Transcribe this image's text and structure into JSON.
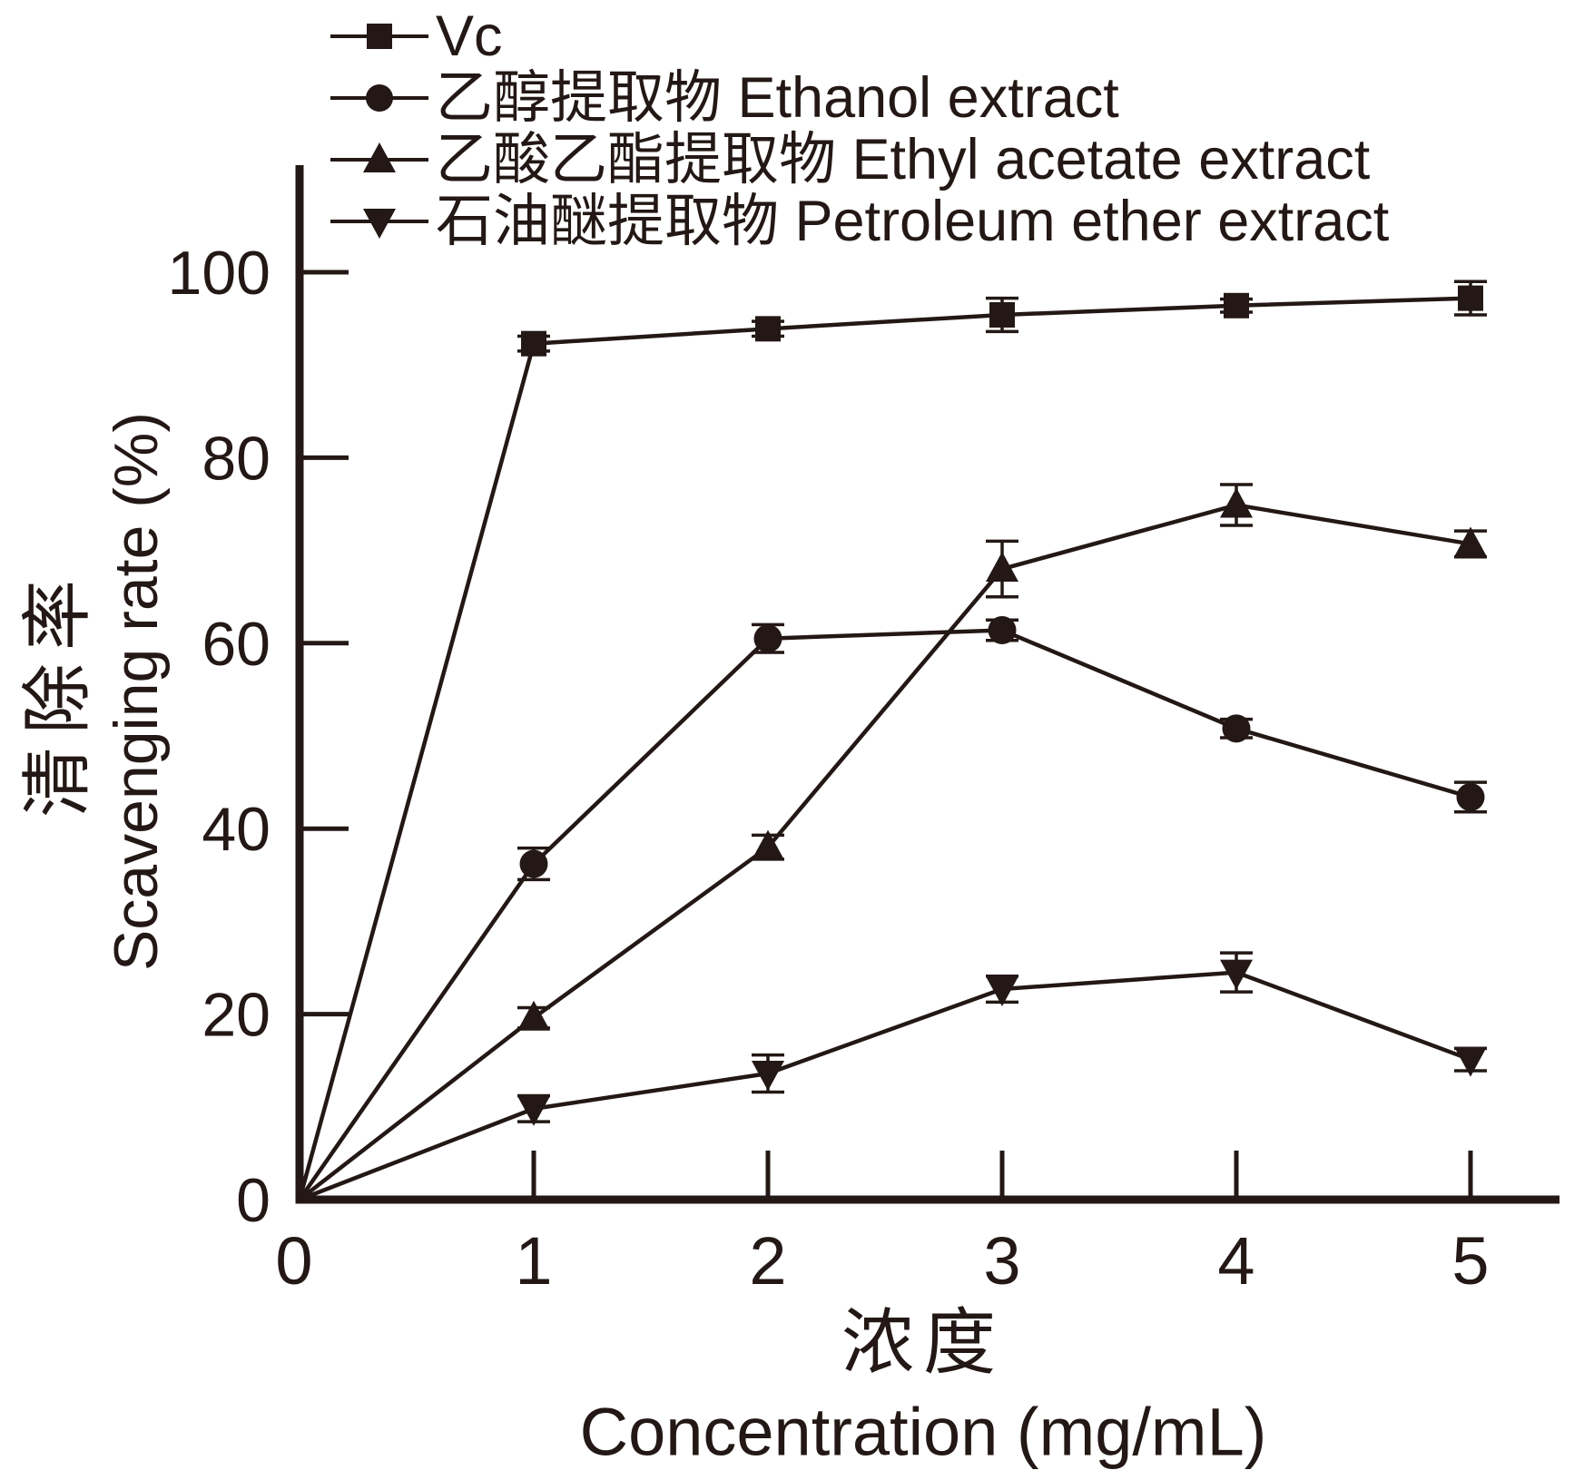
{
  "figure": {
    "background": "#ffffff",
    "ink_color": "#231815"
  },
  "chart_data": {
    "type": "line",
    "x": [
      0,
      1,
      2,
      3,
      4,
      5
    ],
    "series": [
      {
        "name": "Vc",
        "label": "Vc",
        "marker": "square",
        "values": [
          0,
          92.3,
          93.9,
          95.4,
          96.4,
          97.2
        ],
        "errors": [
          0,
          0.8,
          0.8,
          1.8,
          0.7,
          1.8
        ]
      },
      {
        "name": "Ethanol extract",
        "label": "乙醇提取物 Ethanol extract",
        "marker": "circle",
        "values": [
          0,
          36.2,
          60.5,
          61.4,
          50.8,
          43.4
        ],
        "errors": [
          0,
          1.7,
          1.5,
          1.1,
          1.0,
          1.6
        ]
      },
      {
        "name": "Ethyl acetate extract",
        "label": "乙酸乙酯提取物 Ethyl acetate extract",
        "marker": "triangle-up",
        "values": [
          0,
          19.6,
          38.0,
          68.0,
          74.9,
          70.7
        ],
        "errors": [
          0,
          1.1,
          1.3,
          3.0,
          2.2,
          1.4
        ]
      },
      {
        "name": "Petroleum ether extract",
        "label": "石油醚提取物 Petroleum ether extract",
        "marker": "triangle-down",
        "values": [
          0,
          9.8,
          13.6,
          22.7,
          24.5,
          15.1
        ],
        "errors": [
          0,
          1.4,
          2.0,
          1.4,
          2.1,
          1.2
        ]
      }
    ],
    "xlabel_cn": "浓度",
    "xlabel_en": "Concentration (mg/mL)",
    "ylabel_cn": "清除率",
    "ylabel_en": "Scavenging rate (%)",
    "x_ticks": [
      0,
      1,
      2,
      3,
      4,
      5
    ],
    "y_ticks": [
      0,
      20,
      40,
      60,
      80,
      100
    ],
    "xlim": [
      0,
      5.35
    ],
    "ylim": [
      0,
      110
    ],
    "grid": false,
    "legend_position": "top-left",
    "error_bars": true
  }
}
